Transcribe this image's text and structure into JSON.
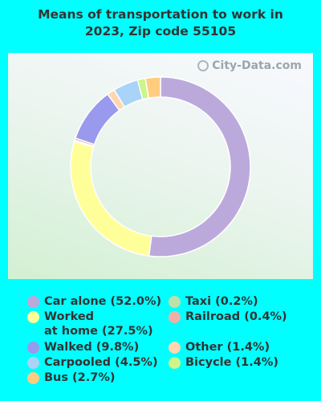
{
  "title_line1": "Means of transportation to work in",
  "title_line2": "2023, Zip code 55105",
  "watermark": "City-Data.com",
  "chart_data": {
    "type": "pie",
    "variant": "donut",
    "title": "Means of transportation to work in 2023, Zip code 55105",
    "legend_position": "bottom",
    "series": [
      {
        "name": "Car alone (52.0%)",
        "value": 52.0,
        "color": "#BCA9DC"
      },
      {
        "name": "Worked at home (27.5%)",
        "value": 27.5,
        "color": "#FFFF99"
      },
      {
        "name": "Taxi (0.2%)",
        "value": 0.2,
        "color": "#BFE0A8"
      },
      {
        "name": "Railroad (0.4%)",
        "value": 0.4,
        "color": "#F0B0A8"
      },
      {
        "name": "Walked (9.8%)",
        "value": 9.8,
        "color": "#9999EE"
      },
      {
        "name": "Other (1.4%)",
        "value": 1.4,
        "color": "#FFD6B0"
      },
      {
        "name": "Carpooled (4.5%)",
        "value": 4.5,
        "color": "#A9D4F8"
      },
      {
        "name": "Bicycle (1.4%)",
        "value": 1.4,
        "color": "#CCF58A"
      },
      {
        "name": "Bus (2.7%)",
        "value": 2.7,
        "color": "#FFCC80"
      }
    ],
    "legend_rows": [
      {
        "left": {
          "label": "Car alone (52.0%)",
          "color": "#BCA9DC"
        },
        "right": {
          "label": "Taxi (0.2%)",
          "color": "#BFE0A8"
        }
      },
      {
        "left": {
          "label": "Worked",
          "label2": "at home (27.5%)",
          "color": "#FFFF99"
        },
        "right": {
          "label": "Railroad (0.4%)",
          "color": "#F0B0A8"
        }
      },
      {
        "left": {
          "label": "Walked (9.8%)",
          "color": "#9999EE"
        },
        "right": {
          "label": "Other (1.4%)",
          "color": "#FFD6B0"
        }
      },
      {
        "left": {
          "label": "Carpooled (4.5%)",
          "color": "#A9D4F8"
        },
        "right": {
          "label": "Bicycle (1.4%)",
          "color": "#CCF58A"
        }
      },
      {
        "left": {
          "label": "Bus (2.7%)",
          "color": "#FFCC80"
        },
        "right": null
      }
    ]
  }
}
